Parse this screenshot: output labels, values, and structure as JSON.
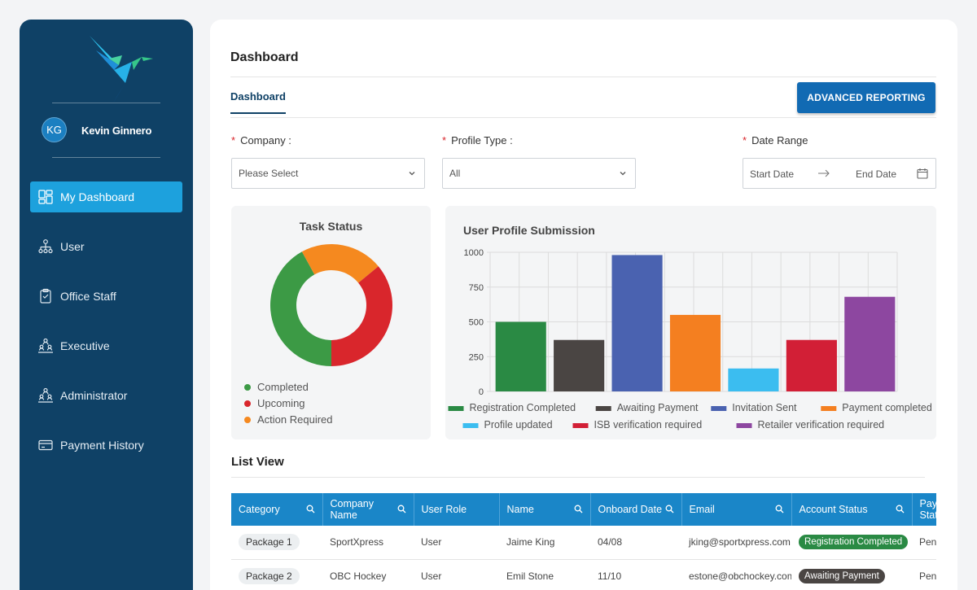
{
  "user": {
    "initials": "KG",
    "name": "Kevin Ginnero"
  },
  "sidebar": {
    "items": [
      {
        "label": "My Dashboard",
        "icon": "dashboard-icon",
        "active": true
      },
      {
        "label": "User",
        "icon": "org-chart-icon"
      },
      {
        "label": "Office Staff",
        "icon": "clipboard-icon"
      },
      {
        "label": "Executive",
        "icon": "hierarchy-icon"
      },
      {
        "label": "Administrator",
        "icon": "hierarchy-icon"
      },
      {
        "label": "Payment History",
        "icon": "card-icon"
      }
    ]
  },
  "header": {
    "title": "Dashboard",
    "tab": "Dashboard",
    "advanced_button": "ADVANCED REPORTING"
  },
  "filters": {
    "company": {
      "label": "Company :",
      "value": "Please Select"
    },
    "profile_type": {
      "label": "Profile Type :",
      "value": "All"
    },
    "date_range": {
      "label": "Date Range",
      "start": "Start Date",
      "end": "End Date"
    }
  },
  "task_status": {
    "title": "Task Status",
    "legend": [
      {
        "label": "Completed",
        "color": "#3c9a45"
      },
      {
        "label": "Upcoming",
        "color": "#d9262c"
      },
      {
        "label": "Action Required",
        "color": "#f5891f"
      }
    ]
  },
  "chart_data": [
    {
      "type": "pie",
      "title": "Task Status",
      "donut": true,
      "labels": [
        "Completed",
        "Upcoming",
        "Action Required"
      ],
      "values": [
        42,
        36,
        22
      ],
      "colors": [
        "#3c9a45",
        "#d9262c",
        "#f5891f"
      ],
      "legend": "bottom-left"
    },
    {
      "type": "bar",
      "title": "User Profile Submission",
      "categories": [
        "Registration Completed",
        "Awaiting Payment",
        "Invitation Sent",
        "Payment completed",
        "Profile updated",
        "ISB verification required",
        "Retailer verification required"
      ],
      "values": [
        500,
        370,
        980,
        550,
        165,
        370,
        680
      ],
      "colors": [
        "#2a8a44",
        "#4a4543",
        "#4a62b0",
        "#f47f20",
        "#3bbdf0",
        "#d21f36",
        "#8d47a0"
      ],
      "ylim": [
        0,
        1000
      ],
      "yticks": [
        0,
        250,
        500,
        750,
        1000
      ],
      "grid": true,
      "legend": "bottom"
    }
  ],
  "list_view": {
    "title": "List View",
    "columns": [
      "Category",
      "Company Name",
      "User Role",
      "Name",
      "Onboard Date",
      "Email",
      "Account Status",
      "Payment Status"
    ],
    "rows": [
      {
        "category": "Package 1",
        "company": "SportXpress",
        "role": "User",
        "name": "Jaime King",
        "date": "04/08",
        "email": "jking@sportxpress.com",
        "status": "Registration Completed",
        "status_color": "#2a8a44",
        "payment": "Pending"
      },
      {
        "category": "Package 2",
        "company": "OBC Hockey",
        "role": "User",
        "name": "Emil Stone",
        "date": "11/10",
        "email": "estone@obchockey.com",
        "status": "Awaiting Payment",
        "status_color": "#4a4543",
        "payment": "Pending"
      }
    ]
  }
}
